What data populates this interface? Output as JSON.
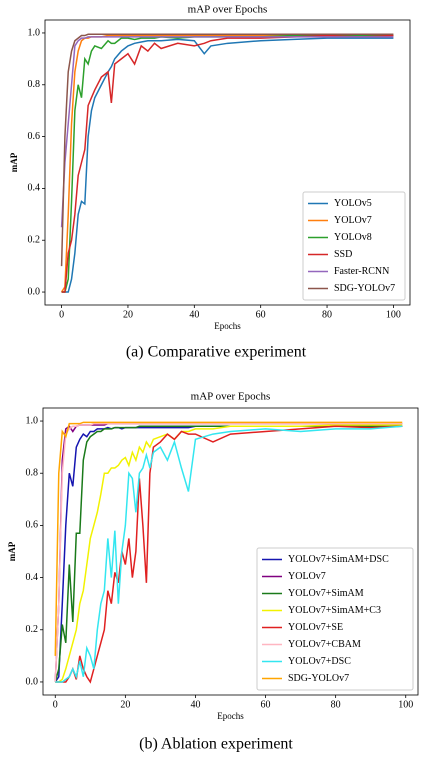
{
  "chart_data": [
    {
      "type": "line",
      "title": "mAP over Epochs",
      "xlabel": "Epochs",
      "ylabel": "mAP",
      "caption": "(a) Comparative experiment",
      "xlim": [
        -5,
        105
      ],
      "ylim": [
        -0.05,
        1.05
      ],
      "xticks": [
        0,
        20,
        40,
        60,
        80,
        100
      ],
      "yticks": [
        {
          "value": 0,
          "label": "0.0"
        },
        0.2,
        0.4,
        0.6,
        0.8,
        {
          "value": 1,
          "label": "1.0"
        }
      ],
      "legend": "lower right",
      "x": [
        0,
        1,
        2,
        3,
        4,
        5,
        6,
        7,
        8,
        9,
        10,
        12,
        14,
        15,
        16,
        18,
        20,
        22,
        24,
        26,
        28,
        30,
        35,
        40,
        43,
        45,
        50,
        60,
        70,
        80,
        90,
        100
      ],
      "series": [
        {
          "name": "YOLOv5",
          "color": "#1f77b4",
          "values": [
            0,
            0,
            0,
            0.05,
            0.15,
            0.3,
            0.35,
            0.34,
            0.6,
            0.7,
            0.75,
            0.8,
            0.85,
            0.87,
            0.9,
            0.93,
            0.95,
            0.96,
            0.965,
            0.97,
            0.97,
            0.97,
            0.975,
            0.97,
            0.92,
            0.95,
            0.96,
            0.97,
            0.975,
            0.98,
            0.98,
            0.98
          ]
        },
        {
          "name": "YOLOv7",
          "color": "#ff7f0e",
          "values": [
            0,
            0.02,
            0.3,
            0.65,
            0.85,
            0.93,
            0.97,
            0.98,
            0.98,
            0.985,
            0.985,
            0.985,
            0.99,
            0.99,
            0.99,
            0.99,
            0.99,
            0.99,
            0.99,
            0.99,
            0.99,
            0.99,
            0.99,
            0.99,
            0.99,
            0.99,
            0.99,
            0.99,
            0.99,
            0.99,
            0.99,
            0.99
          ]
        },
        {
          "name": "YOLOv8",
          "color": "#2ca02c",
          "values": [
            0,
            0,
            0.05,
            0.35,
            0.7,
            0.8,
            0.75,
            0.9,
            0.88,
            0.93,
            0.95,
            0.94,
            0.97,
            0.96,
            0.96,
            0.98,
            0.98,
            0.975,
            0.98,
            0.98,
            0.98,
            0.985,
            0.98,
            0.985,
            0.985,
            0.985,
            0.985,
            0.985,
            0.99,
            0.99,
            0.99,
            0.99
          ]
        },
        {
          "name": "SSD",
          "color": "#d62728",
          "values": [
            0,
            0,
            0.15,
            0.2,
            0.3,
            0.45,
            0.5,
            0.55,
            0.72,
            0.75,
            0.78,
            0.83,
            0.85,
            0.73,
            0.88,
            0.9,
            0.92,
            0.88,
            0.95,
            0.93,
            0.96,
            0.94,
            0.96,
            0.95,
            0.96,
            0.97,
            0.98,
            0.98,
            0.985,
            0.99,
            0.985,
            0.99
          ]
        },
        {
          "name": "Faster-RCNN",
          "color": "#9467bd",
          "values": [
            0.25,
            0.5,
            0.65,
            0.8,
            0.95,
            0.97,
            0.98,
            0.98,
            0.985,
            0.985,
            0.985,
            0.985,
            0.985,
            0.985,
            0.985,
            0.985,
            0.985,
            0.985,
            0.985,
            0.985,
            0.985,
            0.985,
            0.985,
            0.985,
            0.985,
            0.985,
            0.985,
            0.985,
            0.985,
            0.985,
            0.985,
            0.985
          ]
        },
        {
          "name": "SDG-YOLOv7",
          "color": "#8c564b",
          "values": [
            0.1,
            0.6,
            0.85,
            0.93,
            0.97,
            0.98,
            0.99,
            0.99,
            0.995,
            0.995,
            0.995,
            0.995,
            0.995,
            0.995,
            0.995,
            0.995,
            0.995,
            0.995,
            0.995,
            0.995,
            0.995,
            0.995,
            0.995,
            0.995,
            0.995,
            0.995,
            0.995,
            0.995,
            0.995,
            0.995,
            0.995,
            0.995
          ]
        }
      ]
    },
    {
      "type": "line",
      "title": "mAP over Epochs",
      "xlabel": "Epochs",
      "ylabel": "mAP",
      "caption": "(b) Ablation experiment",
      "xlim": [
        -3.5,
        103.5
      ],
      "ylim": [
        -0.05,
        1.05
      ],
      "xticks": [
        0,
        20,
        40,
        60,
        80,
        100
      ],
      "yticks": [
        {
          "value": 0,
          "label": "0.0"
        },
        0.2,
        0.4,
        0.6,
        0.8,
        {
          "value": 1,
          "label": "1.0"
        }
      ],
      "legend": "lower right",
      "x": [
        0,
        1,
        2,
        3,
        4,
        5,
        6,
        7,
        8,
        9,
        10,
        11,
        12,
        13,
        14,
        15,
        16,
        17,
        18,
        19,
        20,
        21,
        22,
        23,
        24,
        25,
        26,
        27,
        28,
        30,
        32,
        34,
        36,
        38,
        40,
        45,
        50,
        60,
        70,
        80,
        90,
        99
      ],
      "series": [
        {
          "name": "YOLOv7+SimAM+DSC",
          "color": "#1515b0",
          "values": [
            0,
            0.02,
            0.3,
            0.6,
            0.8,
            0.75,
            0.9,
            0.93,
            0.95,
            0.94,
            0.96,
            0.96,
            0.97,
            0.97,
            0.97,
            0.975,
            0.97,
            0.975,
            0.975,
            0.97,
            0.975,
            0.975,
            0.975,
            0.975,
            0.975,
            0.975,
            0.975,
            0.975,
            0.975,
            0.975,
            0.975,
            0.975,
            0.975,
            0.975,
            0.98,
            0.98,
            0.98,
            0.98,
            0.98,
            0.98,
            0.98,
            0.98
          ]
        },
        {
          "name": "YOLOv7",
          "color": "#800080",
          "values": [
            0,
            0.3,
            0.85,
            0.97,
            0.98,
            0.96,
            0.98,
            0.985,
            0.985,
            0.985,
            0.985,
            0.985,
            0.985,
            0.985,
            0.985,
            0.99,
            0.99,
            0.99,
            0.99,
            0.99,
            0.99,
            0.99,
            0.99,
            0.99,
            0.99,
            0.99,
            0.99,
            0.99,
            0.99,
            0.99,
            0.99,
            0.99,
            0.99,
            0.99,
            0.99,
            0.99,
            0.99,
            0.99,
            0.99,
            0.99,
            0.99,
            0.99
          ]
        },
        {
          "name": "YOLOv7+SimAM",
          "color": "#1a7a1a",
          "values": [
            0,
            0.05,
            0.22,
            0.15,
            0.45,
            0.23,
            0.57,
            0.57,
            0.85,
            0.92,
            0.94,
            0.95,
            0.96,
            0.96,
            0.97,
            0.97,
            0.97,
            0.975,
            0.975,
            0.975,
            0.975,
            0.975,
            0.975,
            0.975,
            0.98,
            0.98,
            0.98,
            0.98,
            0.98,
            0.98,
            0.98,
            0.98,
            0.98,
            0.98,
            0.98,
            0.98,
            0.98,
            0.98,
            0.98,
            0.98,
            0.98,
            0.98
          ]
        },
        {
          "name": "YOLOv7+SimAM+C3",
          "color": "#f2f200",
          "values": [
            0,
            0,
            0.01,
            0.05,
            0.1,
            0.15,
            0.2,
            0.3,
            0.35,
            0.45,
            0.55,
            0.6,
            0.65,
            0.72,
            0.8,
            0.8,
            0.82,
            0.82,
            0.83,
            0.85,
            0.86,
            0.83,
            0.88,
            0.85,
            0.9,
            0.88,
            0.92,
            0.9,
            0.93,
            0.94,
            0.95,
            0.93,
            0.96,
            0.96,
            0.97,
            0.97,
            0.98,
            0.98,
            0.98,
            0.985,
            0.985,
            0.985
          ]
        },
        {
          "name": "YOLOv7+SE",
          "color": "#e02020",
          "values": [
            0,
            0,
            0,
            0,
            0.02,
            0.05,
            0.01,
            0.1,
            0.05,
            0.02,
            0,
            0.05,
            0.1,
            0.15,
            0.2,
            0.35,
            0.3,
            0.42,
            0.38,
            0.5,
            0.45,
            0.55,
            0.4,
            0.5,
            0.78,
            0.6,
            0.38,
            0.8,
            0.9,
            0.92,
            0.95,
            0.93,
            0.96,
            0.95,
            0.95,
            0.92,
            0.95,
            0.96,
            0.97,
            0.98,
            0.975,
            0.98
          ]
        },
        {
          "name": "YOLOv7+CBAM",
          "color": "#ffb6c1",
          "values": [
            0,
            0.3,
            0.8,
            0.95,
            0.97,
            0.98,
            0.98,
            0.985,
            0.985,
            0.985,
            0.985,
            0.99,
            0.99,
            0.99,
            0.99,
            0.99,
            0.99,
            0.99,
            0.99,
            0.99,
            0.99,
            0.99,
            0.99,
            0.99,
            0.99,
            0.99,
            0.99,
            0.99,
            0.99,
            0.99,
            0.99,
            0.99,
            0.99,
            0.99,
            0.99,
            0.99,
            0.99,
            0.99,
            0.99,
            0.99,
            0.99,
            0.99
          ]
        },
        {
          "name": "YOLOv7+DSC",
          "color": "#33e6f0",
          "values": [
            0,
            0,
            0,
            0.01,
            0.02,
            0.05,
            0.02,
            0.08,
            0.02,
            0.13,
            0.1,
            0.05,
            0.2,
            0.3,
            0.35,
            0.55,
            0.4,
            0.58,
            0.3,
            0.5,
            0.6,
            0.8,
            0.78,
            0.65,
            0.8,
            0.82,
            0.87,
            0.82,
            0.88,
            0.9,
            0.85,
            0.92,
            0.82,
            0.73,
            0.93,
            0.95,
            0.96,
            0.97,
            0.96,
            0.97,
            0.97,
            0.98
          ]
        },
        {
          "name": "SDG-YOLOv7",
          "color": "#ffa500",
          "values": [
            0.1,
            0.8,
            0.96,
            0.94,
            0.99,
            0.99,
            0.99,
            0.99,
            0.995,
            0.995,
            0.995,
            0.995,
            0.995,
            0.995,
            0.995,
            0.995,
            0.995,
            0.995,
            0.995,
            0.995,
            0.995,
            0.995,
            0.995,
            0.995,
            0.995,
            0.995,
            0.995,
            0.995,
            0.995,
            0.995,
            0.995,
            0.995,
            0.995,
            0.995,
            0.995,
            0.995,
            0.995,
            0.995,
            0.995,
            0.995,
            0.995,
            0.995
          ]
        }
      ]
    }
  ]
}
